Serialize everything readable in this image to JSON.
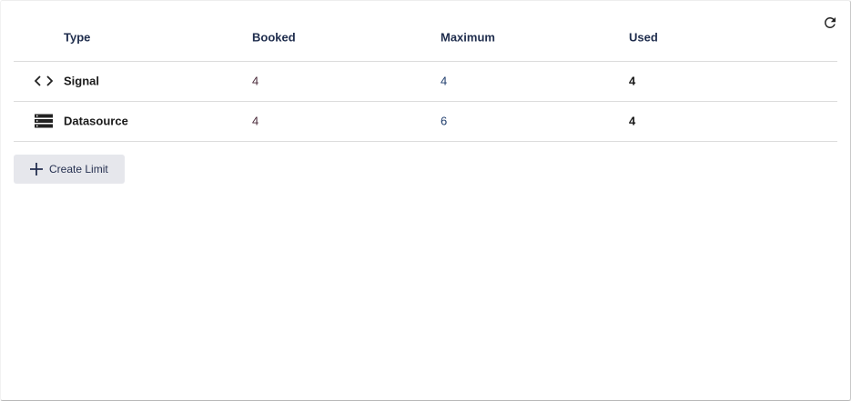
{
  "table": {
    "headers": {
      "type": "Type",
      "booked": "Booked",
      "maximum": "Maximum",
      "used": "Used"
    },
    "rows": [
      {
        "icon": "code-icon",
        "type": "Signal",
        "booked": "4",
        "maximum": "4",
        "used": "4"
      },
      {
        "icon": "server-list-icon",
        "type": "Datasource",
        "booked": "4",
        "maximum": "6",
        "used": "4"
      }
    ]
  },
  "actions": {
    "create_limit_label": "Create Limit",
    "refresh_icon": "refresh-icon"
  }
}
